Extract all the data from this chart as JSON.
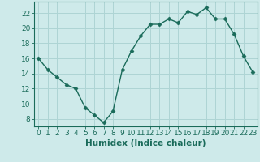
{
  "x": [
    0,
    1,
    2,
    3,
    4,
    5,
    6,
    7,
    8,
    9,
    10,
    11,
    12,
    13,
    14,
    15,
    16,
    17,
    18,
    19,
    20,
    21,
    22,
    23
  ],
  "y": [
    16,
    14.5,
    13.5,
    12.5,
    12,
    9.5,
    8.5,
    7.5,
    9,
    14.5,
    17,
    19,
    20.5,
    20.5,
    21.2,
    20.7,
    22.2,
    21.8,
    22.7,
    21.2,
    21.2,
    19.2,
    16.3,
    14.2
  ],
  "line_color": "#1a6b5a",
  "marker": "D",
  "marker_size": 2.5,
  "bg_color": "#ceeaea",
  "grid_color": "#aed4d4",
  "xlabel": "Humidex (Indice chaleur)",
  "xlim": [
    -0.5,
    23.5
  ],
  "ylim": [
    7,
    23.5
  ],
  "yticks": [
    8,
    10,
    12,
    14,
    16,
    18,
    20,
    22
  ],
  "xticks": [
    0,
    1,
    2,
    3,
    4,
    5,
    6,
    7,
    8,
    9,
    10,
    11,
    12,
    13,
    14,
    15,
    16,
    17,
    18,
    19,
    20,
    21,
    22,
    23
  ],
  "tick_color": "#1a6b5a",
  "label_fontsize": 7.5,
  "tick_fontsize": 6.5,
  "line_width": 1.0
}
